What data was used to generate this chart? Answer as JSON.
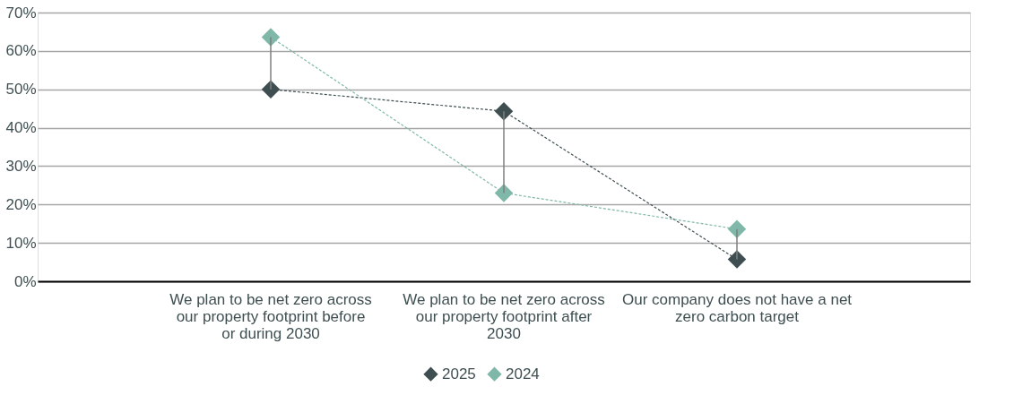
{
  "chart_data": {
    "type": "line",
    "categories": [
      "We plan to be net zero across our property footprint before or during 2030",
      "We plan to be net zero across our property footprint after 2030",
      "Our company does not have a net zero carbon target"
    ],
    "series": [
      {
        "name": "2025",
        "color": "#3f4f51",
        "values": [
          50,
          44.3,
          5.7
        ],
        "errors": [
          [
            50,
            63.6
          ],
          [
            23,
            44.3
          ],
          [
            5.7,
            13.6
          ]
        ]
      },
      {
        "name": "2024",
        "color": "#7fb8a8",
        "values": [
          63.6,
          23,
          13.6
        ]
      }
    ],
    "ylim": [
      0,
      70
    ],
    "yticks": [
      {
        "value": 0,
        "label": "0%"
      },
      {
        "value": 10,
        "label": "10%"
      },
      {
        "value": 20,
        "label": "20%"
      },
      {
        "value": 30,
        "label": "30%"
      },
      {
        "value": 40,
        "label": "40%"
      },
      {
        "value": 50,
        "label": "50%"
      },
      {
        "value": 60,
        "label": "60%"
      },
      {
        "value": 70,
        "label": "70%"
      }
    ],
    "grid": "y",
    "legend": "bottom",
    "marker": "diamond",
    "line_style": "dashed"
  }
}
